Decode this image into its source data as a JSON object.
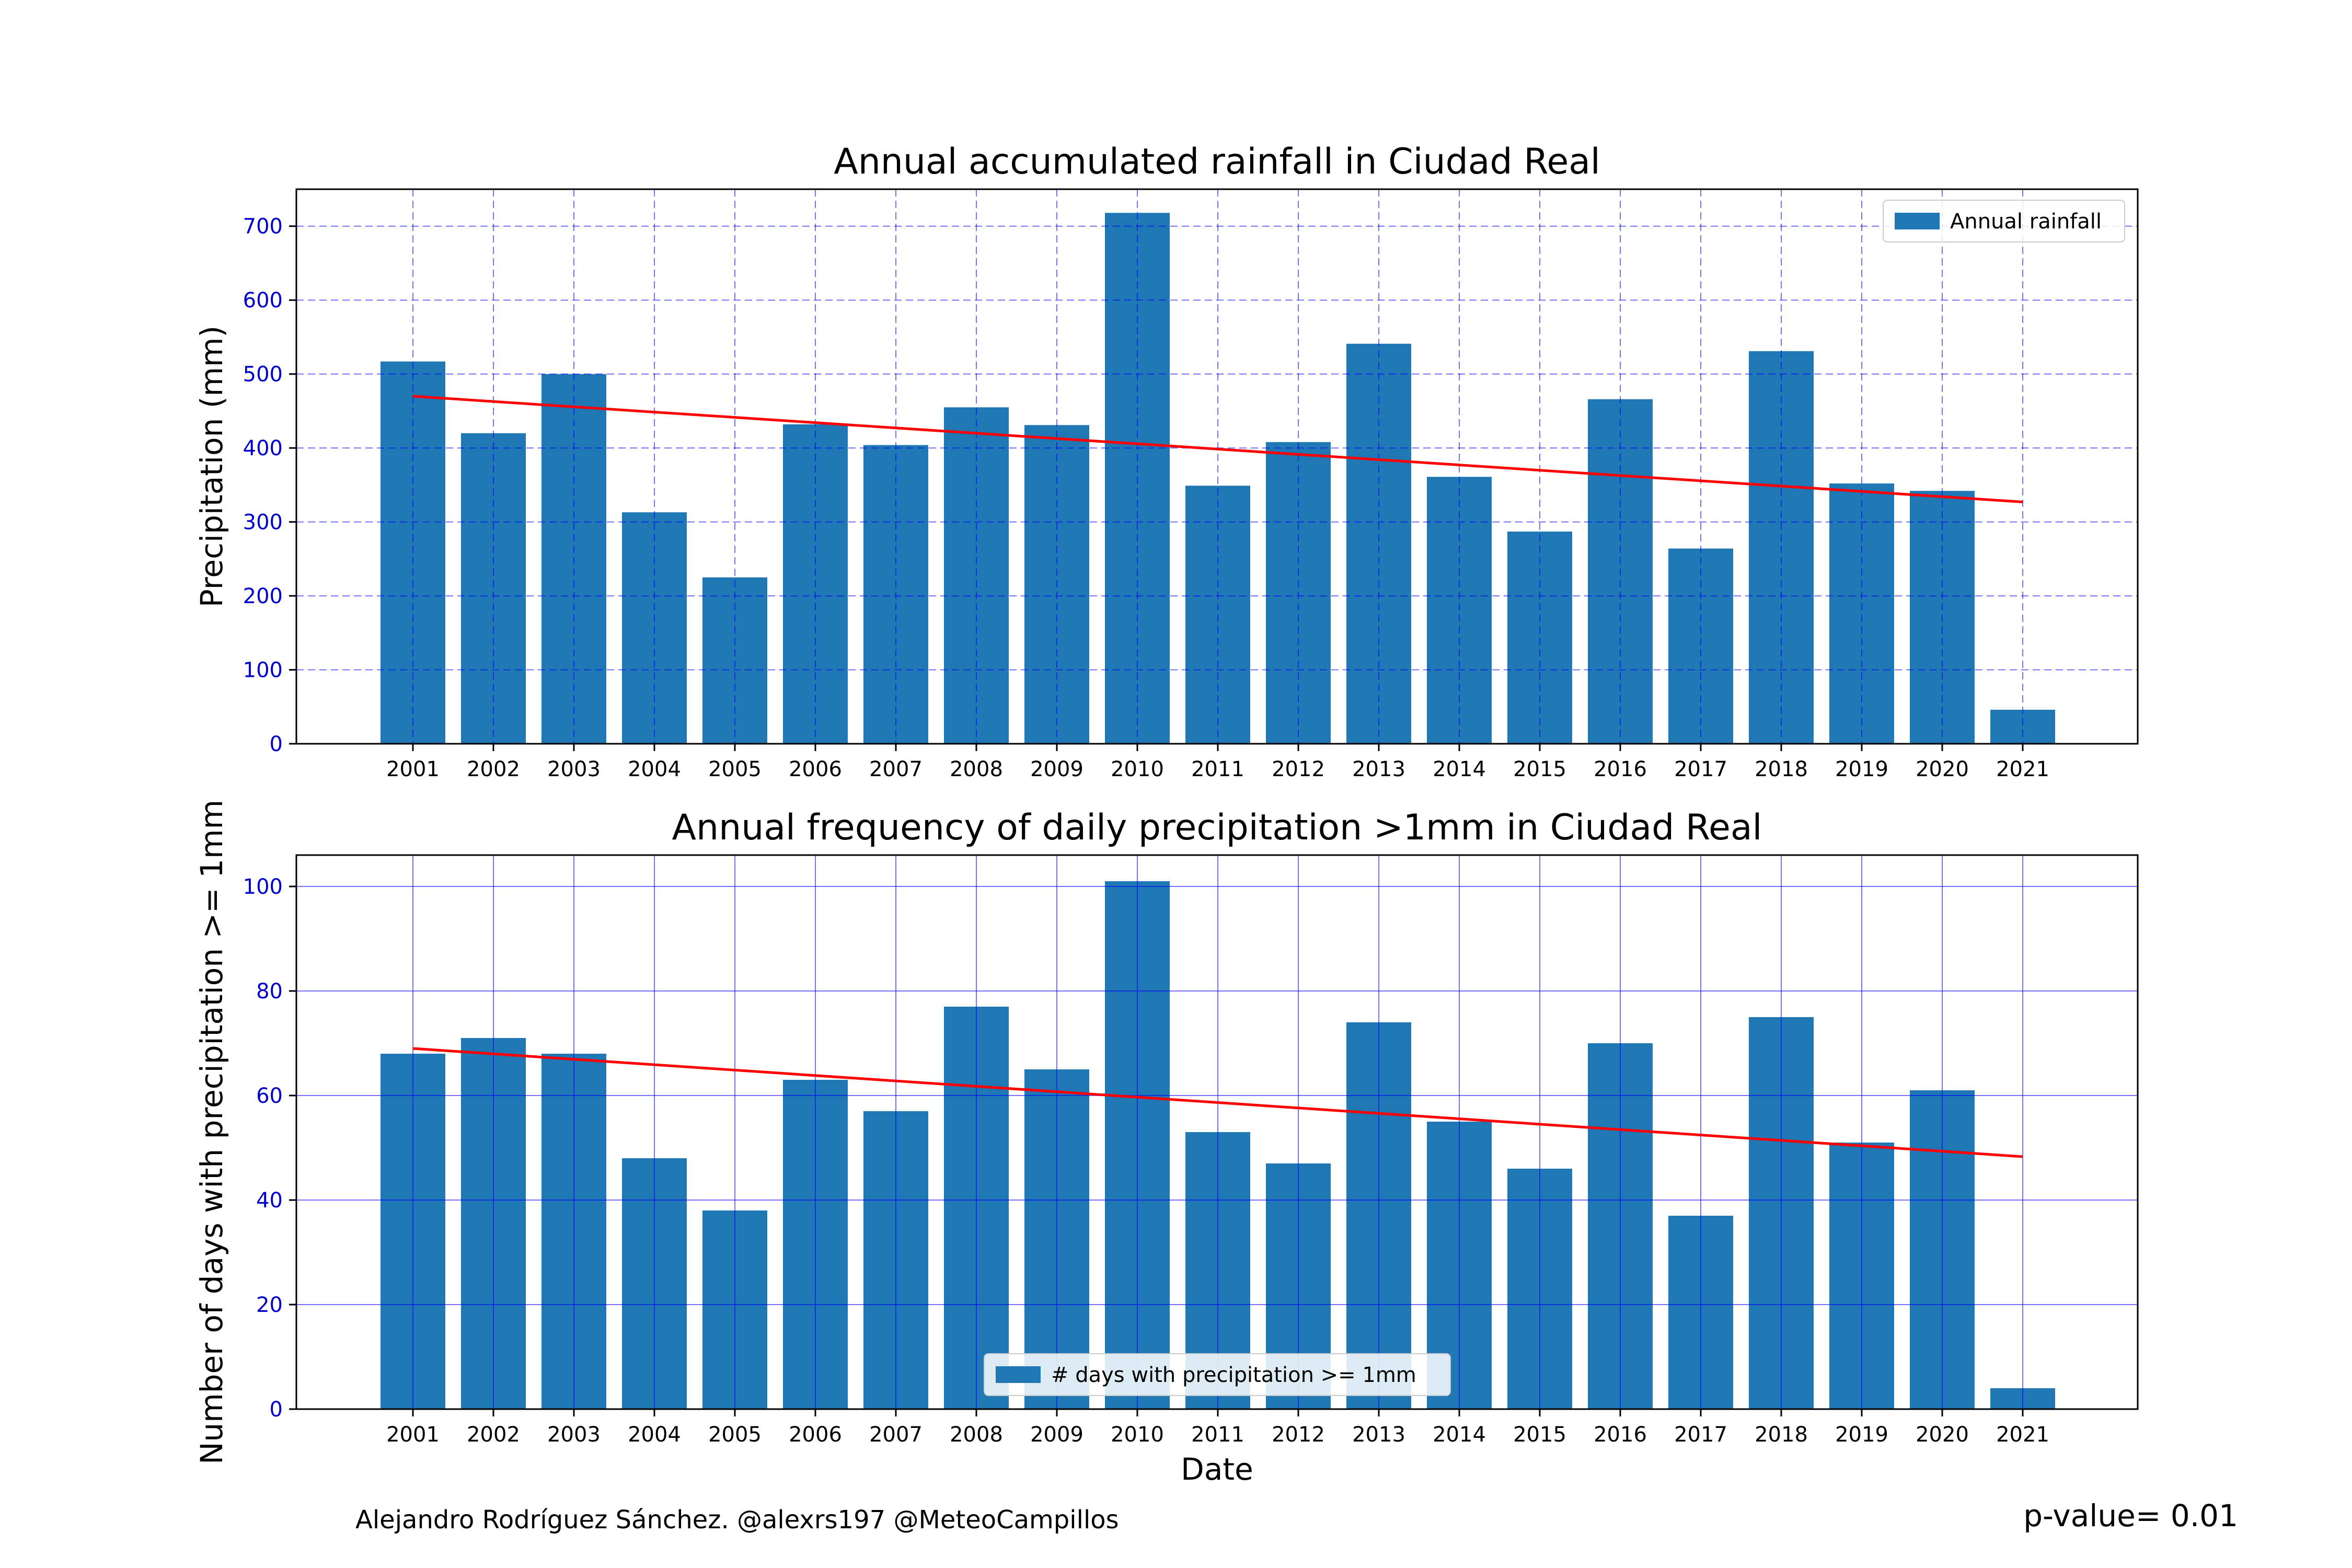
{
  "footer": {
    "credit": "Alejandro Rodríguez Sánchez. @alexrs197 @MeteoCampillos",
    "pvalue": "p-value= 0.01"
  },
  "colors": {
    "bar": "#1f77b4",
    "trend": "#ff0000",
    "grid": "#0000ff",
    "tick": "#0000cc"
  },
  "chart_data": [
    {
      "type": "bar",
      "title": "Annual accumulated rainfall in Ciudad Real",
      "xlabel": "",
      "ylabel": "Precipitation (mm)",
      "categories": [
        "2001",
        "2002",
        "2003",
        "2004",
        "2005",
        "2006",
        "2007",
        "2008",
        "2009",
        "2010",
        "2011",
        "2012",
        "2013",
        "2014",
        "2015",
        "2016",
        "2017",
        "2018",
        "2019",
        "2020",
        "2021"
      ],
      "series": [
        {
          "name": "Annual rainfall",
          "values": [
            517,
            420,
            500,
            313,
            225,
            432,
            404,
            455,
            431,
            718,
            349,
            408,
            541,
            361,
            287,
            466,
            264,
            531,
            352,
            342,
            46
          ]
        }
      ],
      "trend": {
        "start": 470,
        "end": 327
      },
      "ylim": [
        0,
        750
      ],
      "yticks": [
        0,
        100,
        200,
        300,
        400,
        500,
        600,
        700
      ],
      "grid": "dashed",
      "legend": "top-right"
    },
    {
      "type": "bar",
      "title": "Annual frequency of daily precipitation >1mm in Ciudad Real",
      "xlabel": "Date",
      "ylabel": "Number of days with precipitation >= 1mm",
      "categories": [
        "2001",
        "2002",
        "2003",
        "2004",
        "2005",
        "2006",
        "2007",
        "2008",
        "2009",
        "2010",
        "2011",
        "2012",
        "2013",
        "2014",
        "2015",
        "2016",
        "2017",
        "2018",
        "2019",
        "2020",
        "2021"
      ],
      "series": [
        {
          "name": "# days with precipitation >= 1mm",
          "values": [
            68,
            71,
            68,
            48,
            38,
            63,
            57,
            77,
            65,
            101,
            53,
            47,
            74,
            55,
            46,
            70,
            37,
            75,
            51,
            61,
            4
          ]
        }
      ],
      "trend": {
        "start": 69,
        "end": 48.3
      },
      "ylim": [
        0,
        106
      ],
      "yticks": [
        0,
        20,
        40,
        60,
        80,
        100
      ],
      "grid": "solid",
      "legend": "bottom-center"
    }
  ]
}
